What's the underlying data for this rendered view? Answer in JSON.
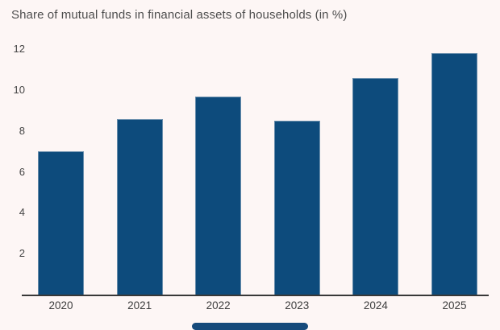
{
  "chart_data": {
    "type": "bar",
    "title": "Share of mutual funds in financial assets of households (in %)",
    "categories": [
      "2020",
      "2021",
      "2022",
      "2023",
      "2024",
      "2025"
    ],
    "values": [
      7.0,
      8.6,
      9.7,
      8.5,
      10.6,
      11.8
    ],
    "xlabel": "",
    "ylabel": "",
    "ylim": [
      0,
      12
    ],
    "yticks": [
      2,
      4,
      6,
      8,
      10,
      12
    ],
    "grid": false,
    "legend": "none"
  },
  "colors": {
    "background": "#fdf6f5",
    "bar_fill": "#0d4b7c",
    "bar_edge": "#b7c6d3",
    "axis_line": "#383838",
    "title_text": "#4e4e4e",
    "tick_text": "#3d3d3d",
    "home_indicator": "#164a7b"
  }
}
